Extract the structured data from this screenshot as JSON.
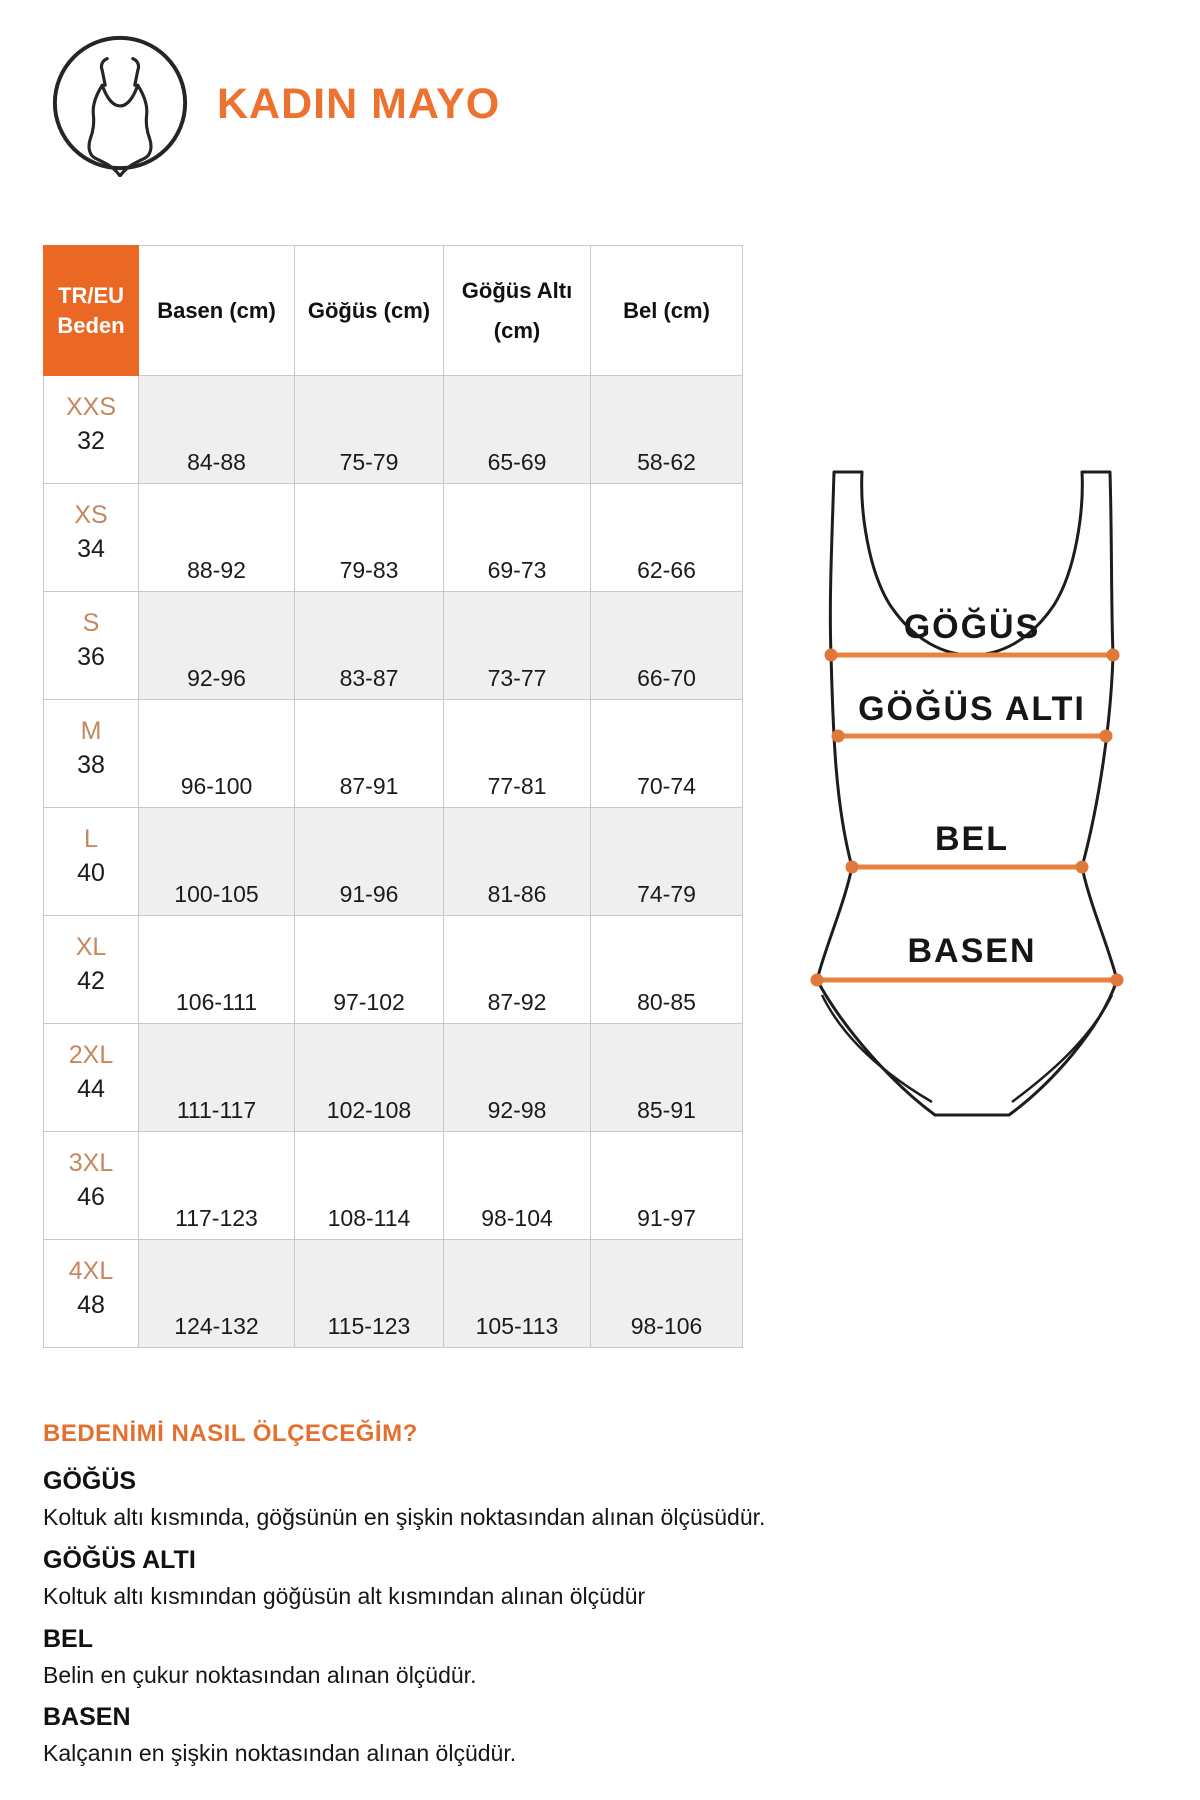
{
  "header": {
    "title": "KADIN MAYO",
    "icon": "woman-swimsuit-icon"
  },
  "table": {
    "columns": [
      "TR/EU\nBeden",
      "Basen (cm)",
      "Göğüs (cm)",
      "Göğüs Altı (cm)",
      "Bel (cm)"
    ],
    "rows": [
      {
        "size": "XXS",
        "eu": "32",
        "basen": "84-88",
        "gogus": "75-79",
        "gogus_alti": "65-69",
        "bel": "58-62"
      },
      {
        "size": "XS",
        "eu": "34",
        "basen": "88-92",
        "gogus": "79-83",
        "gogus_alti": "69-73",
        "bel": "62-66"
      },
      {
        "size": "S",
        "eu": "36",
        "basen": "92-96",
        "gogus": "83-87",
        "gogus_alti": "73-77",
        "bel": "66-70"
      },
      {
        "size": "M",
        "eu": "38",
        "basen": "96-100",
        "gogus": "87-91",
        "gogus_alti": "77-81",
        "bel": "70-74"
      },
      {
        "size": "L",
        "eu": "40",
        "basen": "100-105",
        "gogus": "91-96",
        "gogus_alti": "81-86",
        "bel": "74-79"
      },
      {
        "size": "XL",
        "eu": "42",
        "basen": "106-111",
        "gogus": "97-102",
        "gogus_alti": "87-92",
        "bel": "80-85"
      },
      {
        "size": "2XL",
        "eu": "44",
        "basen": "111-117",
        "gogus": "102-108",
        "gogus_alti": "92-98",
        "bel": "85-91"
      },
      {
        "size": "3XL",
        "eu": "46",
        "basen": "117-123",
        "gogus": "108-114",
        "gogus_alti": "98-104",
        "bel": "91-97"
      },
      {
        "size": "4XL",
        "eu": "48",
        "basen": "124-132",
        "gogus": "115-123",
        "gogus_alti": "105-113",
        "bel": "98-106"
      }
    ]
  },
  "diagram": {
    "labels": [
      {
        "text": "GÖĞÜS"
      },
      {
        "text": "GÖĞÜS ALTI"
      },
      {
        "text": "BEL"
      },
      {
        "text": "BASEN"
      }
    ]
  },
  "guide": {
    "heading": "BEDENİMİ NASIL ÖLÇECEĞİM?",
    "items": [
      {
        "term": "GÖĞÜS",
        "description": "Koltuk altı kısmında, göğsünün en şişkin noktasından alınan ölçüsüdür."
      },
      {
        "term": "GÖĞÜS ALTI",
        "description": "Koltuk altı kısmından göğüsün alt kısmından alınan ölçüdür"
      },
      {
        "term": "BEL",
        "description": "Belin en çukur noktasından alınan ölçüdür."
      },
      {
        "term": "BASEN",
        "description": "Kalçanın en şişkin noktasından alınan ölçüdür."
      }
    ]
  },
  "colors": {
    "accent_orange": "#EB6824",
    "title_orange": "#ED7230",
    "size_label_tan": "#C6875D",
    "measure_line_orange": "#E8823E",
    "row_alt_gray": "#EFEFEF"
  }
}
